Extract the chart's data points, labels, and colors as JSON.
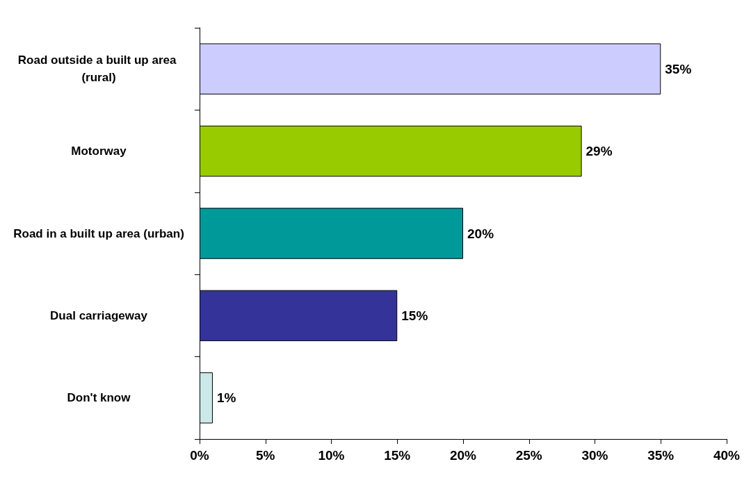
{
  "chart_data": {
    "type": "bar",
    "orientation": "horizontal",
    "categories": [
      "Road outside a built up area (rural)",
      "Motorway",
      "Road in a built up area (urban)",
      "Dual carriageway",
      "Don't know"
    ],
    "values": [
      35,
      29,
      20,
      15,
      1
    ],
    "colors": [
      "#ccccff",
      "#99cc00",
      "#009999",
      "#333399",
      "#cce8e8"
    ],
    "value_labels": [
      "35%",
      "29%",
      "20%",
      "15%",
      "1%"
    ],
    "xlim": [
      0,
      40
    ],
    "xticks": [
      {
        "value": 0,
        "label": "0%"
      },
      {
        "value": 5,
        "label": "5%"
      },
      {
        "value": 10,
        "label": "10%"
      },
      {
        "value": 15,
        "label": "15%"
      },
      {
        "value": 20,
        "label": "20%"
      },
      {
        "value": 25,
        "label": "25%"
      },
      {
        "value": 30,
        "label": "30%"
      },
      {
        "value": 35,
        "label": "35%"
      },
      {
        "value": 40,
        "label": "40%"
      }
    ],
    "grid": false
  }
}
